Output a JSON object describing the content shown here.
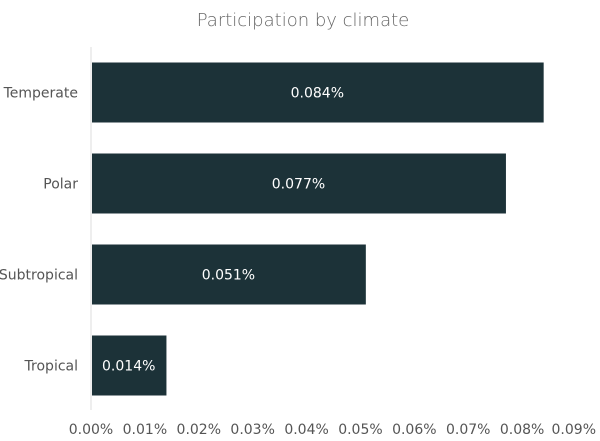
{
  "chart_data": {
    "type": "bar",
    "orientation": "horizontal",
    "title": "Participation by climate",
    "xlabel": "",
    "ylabel": "",
    "categories": [
      "Temperate",
      "Polar",
      "Subtropical",
      "Tropical"
    ],
    "values": [
      0.084,
      0.077,
      0.051,
      0.014
    ],
    "value_labels": [
      "0.084%",
      "0.077%",
      "0.051%",
      "0.014%"
    ],
    "value_unit": "%",
    "xlim": [
      0,
      0.09
    ],
    "xticks": [
      0.0,
      0.01,
      0.02,
      0.03,
      0.04,
      0.05,
      0.06,
      0.07,
      0.08,
      0.09
    ],
    "xtick_labels": [
      "0.00%",
      "0.01%",
      "0.02%",
      "0.03%",
      "0.04%",
      "0.05%",
      "0.06%",
      "0.07%",
      "0.08%",
      "0.09%"
    ],
    "grid": false,
    "legend": "none"
  },
  "colors": {
    "bar": "#1c3238",
    "bar_label": "#ffffff",
    "text": "#555555",
    "title": "#666666",
    "axis": "#dddddd"
  }
}
